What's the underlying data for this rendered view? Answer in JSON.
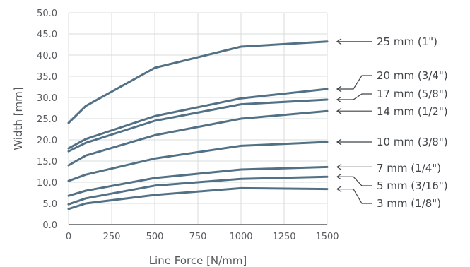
{
  "chart_data": {
    "type": "line",
    "title": "",
    "xlabel": "Line Force [N/mm]",
    "ylabel": "Width [mm]",
    "xlim": [
      0,
      1500
    ],
    "ylim": [
      0,
      50
    ],
    "x_ticks": [
      "0",
      "250",
      "500",
      "750",
      "1000",
      "1250",
      "1500"
    ],
    "y_ticks": [
      "0.0",
      "5.0",
      "10.0",
      "15.0",
      "20.0",
      "25.0",
      "30.0",
      "35.0",
      "40.0",
      "45.0",
      "50.0"
    ],
    "grid": true,
    "legend": "labels at right end of each line with arrows",
    "line_color": "#527186",
    "x": [
      0,
      100,
      500,
      1000,
      1500
    ],
    "series": [
      {
        "name": "25 mm (1\")",
        "values": [
          24.0,
          28.0,
          37.0,
          42.0,
          43.2
        ]
      },
      {
        "name": "20 mm (3/4\")",
        "values": [
          18.0,
          20.2,
          25.6,
          29.8,
          32.0
        ]
      },
      {
        "name": "17 mm (5/8\")",
        "values": [
          17.3,
          19.3,
          24.5,
          28.4,
          29.5
        ]
      },
      {
        "name": "14 mm (1/2\")",
        "values": [
          14.0,
          16.3,
          21.1,
          25.0,
          26.8
        ]
      },
      {
        "name": "10 mm (3/8\")",
        "values": [
          10.3,
          11.8,
          15.6,
          18.6,
          19.5
        ]
      },
      {
        "name": "7 mm (1/4\")",
        "values": [
          6.8,
          8.0,
          11.0,
          13.0,
          13.6
        ]
      },
      {
        "name": "5 mm (3/16\")",
        "values": [
          4.8,
          6.2,
          9.2,
          10.8,
          11.3
        ]
      },
      {
        "name": "3 mm (1/8\")",
        "values": [
          3.7,
          5.0,
          7.0,
          8.6,
          8.4
        ]
      }
    ]
  }
}
